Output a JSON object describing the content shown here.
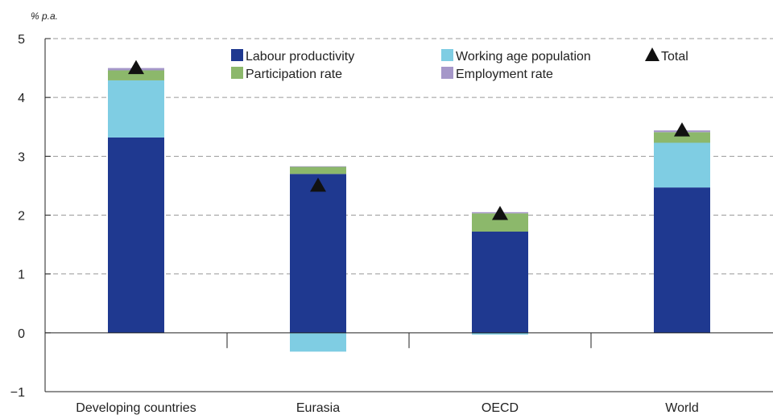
{
  "chart_data": {
    "type": "bar",
    "stacked": true,
    "ylabel": "% p.a.",
    "ylim": [
      -1,
      5
    ],
    "yticks": [
      -1,
      0,
      1,
      2,
      3,
      4,
      5
    ],
    "ytick_labels": [
      "−1",
      "0",
      "1",
      "2",
      "3",
      "4",
      "5"
    ],
    "grid": "dashed horizontal",
    "legend_position": "top",
    "categories": [
      "Developing countries",
      "Eurasia",
      "OECD",
      "World"
    ],
    "series": [
      {
        "name": "Labour productivity",
        "color": "#1f3990",
        "values": [
          3.32,
          2.7,
          1.72,
          2.47
        ]
      },
      {
        "name": "Working age population",
        "color": "#7fcde3",
        "values": [
          0.97,
          -0.32,
          -0.03,
          0.76
        ]
      },
      {
        "name": "Participation rate",
        "color": "#8cb86b",
        "values": [
          0.17,
          0.12,
          0.31,
          0.18
        ]
      },
      {
        "name": "Employment rate",
        "color": "#a597c9",
        "values": [
          0.04,
          0.01,
          0.02,
          0.03
        ]
      }
    ],
    "total": {
      "name": "Total",
      "marker": "triangle",
      "color": "#111111",
      "values": [
        4.5,
        2.5,
        2.02,
        3.44
      ]
    }
  }
}
